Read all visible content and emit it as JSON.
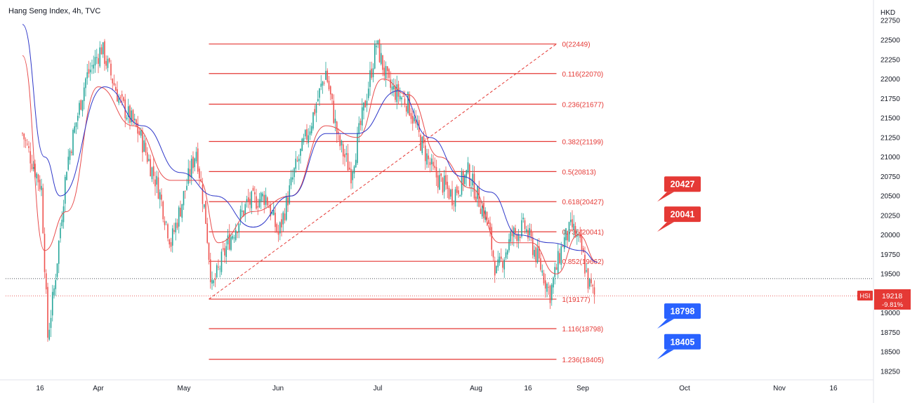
{
  "chart_title": "Hang Seng Index, 4h, TVC",
  "currency": "HKD",
  "colors": {
    "up": "#26a69a",
    "down": "#ef5350",
    "ma_fast": "#e84c4c",
    "ma_slow": "#2f38c9",
    "fib": "#e53935",
    "badge_red": "#e53935",
    "badge_blue": "#2962ff"
  },
  "chart_data": {
    "type": "candlestick",
    "title": "Hang Seng Index, 4h, TVC",
    "ylabel": "HKD",
    "ylim": [
      18150,
      22800
    ],
    "y_ticks": [
      18250,
      18500,
      18750,
      19000,
      19250,
      19500,
      19750,
      20000,
      20250,
      20500,
      20750,
      21000,
      21250,
      21500,
      21750,
      22000,
      22250,
      22500,
      22750
    ],
    "x_ticks": [
      "16",
      "Apr",
      "May",
      "Jun",
      "Jul",
      "Aug",
      "16",
      "Sep",
      "Oct",
      "Nov",
      "16"
    ],
    "close_path": [
      {
        "date": "Mar 8",
        "value": 21300
      },
      {
        "date": "Mar 14",
        "value": 20600
      },
      {
        "date": "Mar 16",
        "value": 18700
      },
      {
        "date": "Mar 18",
        "value": 19300
      },
      {
        "date": "Mar 22",
        "value": 20900
      },
      {
        "date": "Mar 28",
        "value": 22000
      },
      {
        "date": "Apr 2",
        "value": 22400
      },
      {
        "date": "Apr 8",
        "value": 21700
      },
      {
        "date": "Apr 14",
        "value": 21300
      },
      {
        "date": "Apr 20",
        "value": 20600
      },
      {
        "date": "Apr 24",
        "value": 19900
      },
      {
        "date": "Apr 28",
        "value": 20500
      },
      {
        "date": "May 2",
        "value": 21100
      },
      {
        "date": "May 5",
        "value": 20200
      },
      {
        "date": "May 7",
        "value": 19300
      },
      {
        "date": "May 12",
        "value": 19900
      },
      {
        "date": "May 18",
        "value": 20400
      },
      {
        "date": "May 24",
        "value": 20500
      },
      {
        "date": "May 28",
        "value": 20000
      },
      {
        "date": "Jun 2",
        "value": 20800
      },
      {
        "date": "Jun 7",
        "value": 21400
      },
      {
        "date": "Jun 12",
        "value": 22100
      },
      {
        "date": "Jun 16",
        "value": 21200
      },
      {
        "date": "Jun 20",
        "value": 20800
      },
      {
        "date": "Jun 24",
        "value": 21600
      },
      {
        "date": "Jun 28",
        "value": 22449
      },
      {
        "date": "Jul 2",
        "value": 21900
      },
      {
        "date": "Jul 8",
        "value": 21700
      },
      {
        "date": "Jul 12",
        "value": 21200
      },
      {
        "date": "Jul 16",
        "value": 20800
      },
      {
        "date": "Jul 22",
        "value": 20500
      },
      {
        "date": "Jul 27",
        "value": 20800
      },
      {
        "date": "Aug 2",
        "value": 20200
      },
      {
        "date": "Aug 5",
        "value": 19500
      },
      {
        "date": "Aug 10",
        "value": 20000
      },
      {
        "date": "Aug 14",
        "value": 20100
      },
      {
        "date": "Aug 18",
        "value": 19700
      },
      {
        "date": "Aug 22",
        "value": 19250
      },
      {
        "date": "Aug 26",
        "value": 19900
      },
      {
        "date": "Aug 29",
        "value": 20100
      },
      {
        "date": "Sep 1",
        "value": 19800
      },
      {
        "date": "Sep 3",
        "value": 19400
      },
      {
        "date": "Sep 5",
        "value": 19218
      }
    ],
    "ma_fast": [
      {
        "date": "Mar 8",
        "value": 22300
      },
      {
        "date": "Mar 15",
        "value": 19800
      },
      {
        "date": "Mar 22",
        "value": 20300
      },
      {
        "date": "Apr 1",
        "value": 21900
      },
      {
        "date": "Apr 12",
        "value": 21400
      },
      {
        "date": "Apr 24",
        "value": 20700
      },
      {
        "date": "May 3",
        "value": 20700
      },
      {
        "date": "May 9",
        "value": 19900
      },
      {
        "date": "May 20",
        "value": 20300
      },
      {
        "date": "Jun 1",
        "value": 20500
      },
      {
        "date": "Jun 12",
        "value": 21400
      },
      {
        "date": "Jun 22",
        "value": 21250
      },
      {
        "date": "Jun 30",
        "value": 22000
      },
      {
        "date": "Jul 8",
        "value": 21800
      },
      {
        "date": "Jul 18",
        "value": 21000
      },
      {
        "date": "Jul 28",
        "value": 20600
      },
      {
        "date": "Aug 6",
        "value": 19900
      },
      {
        "date": "Aug 16",
        "value": 19900
      },
      {
        "date": "Aug 24",
        "value": 19500
      },
      {
        "date": "Aug 31",
        "value": 20000
      },
      {
        "date": "Sep 6",
        "value": 19650
      }
    ],
    "ma_slow": [
      {
        "date": "Mar 8",
        "value": 22700
      },
      {
        "date": "Mar 15",
        "value": 21000
      },
      {
        "date": "Mar 20",
        "value": 20500
      },
      {
        "date": "Apr 3",
        "value": 21900
      },
      {
        "date": "Apr 15",
        "value": 21400
      },
      {
        "date": "Apr 27",
        "value": 20800
      },
      {
        "date": "May 8",
        "value": 20500
      },
      {
        "date": "May 20",
        "value": 20100
      },
      {
        "date": "Jun 1",
        "value": 20500
      },
      {
        "date": "Jun 12",
        "value": 21300
      },
      {
        "date": "Jun 22",
        "value": 21300
      },
      {
        "date": "Jul 5",
        "value": 21850
      },
      {
        "date": "Jul 15",
        "value": 21250
      },
      {
        "date": "Jul 25",
        "value": 20750
      },
      {
        "date": "Aug 3",
        "value": 20550
      },
      {
        "date": "Aug 12",
        "value": 20000
      },
      {
        "date": "Aug 22",
        "value": 19900
      },
      {
        "date": "Sep 1",
        "value": 19800
      },
      {
        "date": "Sep 6",
        "value": 19650
      }
    ],
    "fib_levels": [
      {
        "ratio": "0",
        "value": 22449,
        "label": "0(22449)"
      },
      {
        "ratio": "0.116",
        "value": 22070,
        "label": "0.116(22070)"
      },
      {
        "ratio": "0.236",
        "value": 21677,
        "label": "0.236(21677)"
      },
      {
        "ratio": "0.382",
        "value": 21199,
        "label": "0.382(21199)"
      },
      {
        "ratio": "0.5",
        "value": 20813,
        "label": "0.5(20813)"
      },
      {
        "ratio": "0.618",
        "value": 20427,
        "label": "0.618(20427)"
      },
      {
        "ratio": "0.736",
        "value": 20041,
        "label": "0.736(20041)"
      },
      {
        "ratio": "0.852",
        "value": 19662,
        "label": "0.852(19662)"
      },
      {
        "ratio": "1",
        "value": 19177,
        "label": "1(19177)"
      },
      {
        "ratio": "1.116",
        "value": 18798,
        "label": "1.116(18798)"
      },
      {
        "ratio": "1.236",
        "value": 18405,
        "label": "1.236(18405)"
      }
    ],
    "fib_range": {
      "start_date": "May 6",
      "end_date": "Aug 24"
    },
    "fib_trend_line": {
      "from": {
        "date": "May 6",
        "value": 19177
      },
      "to": {
        "date": "Aug 24",
        "value": 22449
      }
    },
    "badges": [
      {
        "text": "20427",
        "value": 20427,
        "color": "red"
      },
      {
        "text": "20041",
        "value": 20041,
        "color": "red"
      },
      {
        "text": "18798",
        "value": 18798,
        "color": "blue"
      },
      {
        "text": "18405",
        "value": 18405,
        "color": "blue"
      }
    ],
    "last_price": {
      "symbol": "HSI",
      "value": "19218",
      "change": "-9.81%"
    },
    "dotted_level": 19440
  }
}
